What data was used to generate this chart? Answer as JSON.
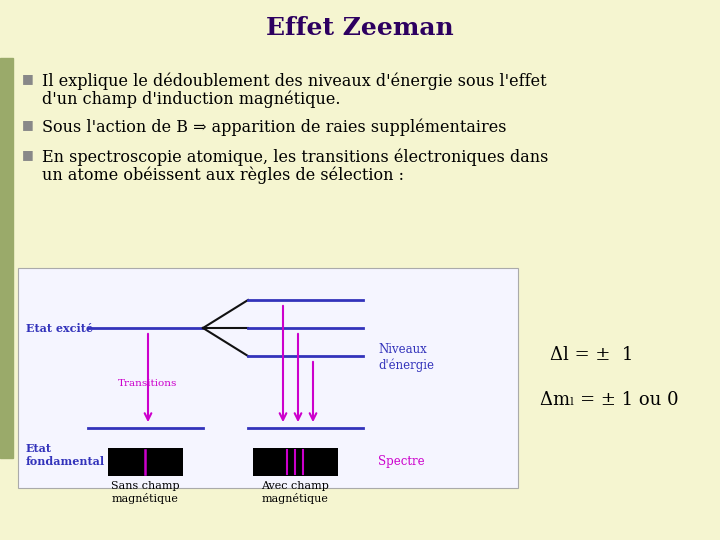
{
  "title": "Effet Zeeman",
  "title_color": "#2d0060",
  "title_fontsize": 18,
  "background_color": "#f5f5d0",
  "left_bar_color": "#9aaa6a",
  "bullet_color": "#888888",
  "text_color": "#000000",
  "text_fontsize": 11.5,
  "bullet1_line1": "Il explique le dédoublement des niveaux d'énergie sous l'effet",
  "bullet1_line2": "d'un champ d'induction magnétique.",
  "bullet2": "Sous l'action de B ⇒ apparition de raies supplémentaires",
  "bullet3_line1": "En spectroscopie atomique, les transitions électroniques dans",
  "bullet3_line2": "un atome obéissent aux règles de sélection :",
  "formula1": "Δl = ±  1",
  "formula2": "Δmₗ = ± 1 ou 0",
  "diagram_bg": "#f0f0ff",
  "purple_color": "#6600aa",
  "magenta_color": "#cc00cc",
  "blue_color": "#3333bb",
  "dark_color": "#111111",
  "label_etat_excite": "Etat excité",
  "label_etat_fondamental": "Etat\nfondamental",
  "label_transitions": "Transitions",
  "label_niveaux": "Niveaux\nd'énergie",
  "label_spectre": "Spectre",
  "label_sans_champ": "Sans champ\nmagnétique",
  "label_avec_champ": "Avec champ\nmagnétique"
}
